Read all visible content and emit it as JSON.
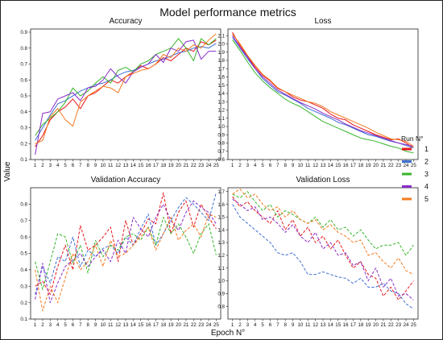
{
  "figure": {
    "title": "Model performance metrics",
    "xlabel": "Epoch N°",
    "ylabel": "Value",
    "legend_title": "Run N°"
  },
  "colors": {
    "run1": "#e8161b",
    "run2": "#3f6fd3",
    "run3": "#37b52b",
    "run4": "#8a2cc9",
    "run5": "#f47a1f"
  },
  "chart_data": [
    {
      "type": "line",
      "title": "Accuracy",
      "line_style": "solid",
      "x": [
        1,
        2,
        3,
        4,
        5,
        6,
        7,
        8,
        9,
        10,
        11,
        12,
        13,
        14,
        15,
        16,
        17,
        18,
        19,
        20,
        21,
        22,
        23,
        24,
        25
      ],
      "ylim": [
        0.1,
        0.92
      ],
      "yticks": [
        0.1,
        0.2,
        0.3,
        0.4,
        0.5,
        0.6,
        0.7,
        0.8,
        0.9
      ],
      "series": [
        {
          "name": "1",
          "values": [
            0.18,
            0.25,
            0.35,
            0.4,
            0.43,
            0.48,
            0.42,
            0.5,
            0.52,
            0.56,
            0.6,
            0.58,
            0.62,
            0.65,
            0.69,
            0.67,
            0.7,
            0.74,
            0.72,
            0.76,
            0.8,
            0.78,
            0.84,
            0.82,
            0.85
          ]
        },
        {
          "name": "2",
          "values": [
            0.22,
            0.3,
            0.38,
            0.45,
            0.47,
            0.5,
            0.53,
            0.55,
            0.57,
            0.58,
            0.6,
            0.63,
            0.65,
            0.66,
            0.68,
            0.7,
            0.72,
            0.73,
            0.75,
            0.77,
            0.78,
            0.8,
            0.81,
            0.8,
            0.83
          ]
        },
        {
          "name": "3",
          "values": [
            0.25,
            0.32,
            0.36,
            0.4,
            0.46,
            0.55,
            0.5,
            0.53,
            0.58,
            0.62,
            0.58,
            0.66,
            0.68,
            0.65,
            0.7,
            0.72,
            0.76,
            0.78,
            0.8,
            0.86,
            0.8,
            0.72,
            0.86,
            0.82,
            0.86
          ]
        },
        {
          "name": "4",
          "values": [
            0.13,
            0.39,
            0.4,
            0.48,
            0.5,
            0.52,
            0.47,
            0.55,
            0.56,
            0.6,
            0.67,
            0.62,
            0.58,
            0.65,
            0.68,
            0.7,
            0.76,
            0.71,
            0.8,
            0.78,
            0.84,
            0.85,
            0.73,
            0.78,
            0.78
          ]
        },
        {
          "name": "5",
          "values": [
            0.2,
            0.22,
            0.37,
            0.42,
            0.35,
            0.31,
            0.46,
            0.5,
            0.53,
            0.56,
            0.55,
            0.52,
            0.62,
            0.64,
            0.66,
            0.67,
            0.7,
            0.76,
            0.74,
            0.8,
            0.78,
            0.82,
            0.8,
            0.85,
            0.89
          ]
        }
      ]
    },
    {
      "type": "line",
      "title": "Loss",
      "line_style": "solid",
      "x": [
        1,
        2,
        3,
        4,
        5,
        6,
        7,
        8,
        9,
        10,
        11,
        12,
        13,
        14,
        15,
        16,
        17,
        18,
        19,
        20,
        21,
        22,
        23,
        24,
        25
      ],
      "ylim": [
        0.6,
        2.18
      ],
      "yticks": [
        0.6,
        0.7,
        0.8,
        0.9,
        1.0,
        1.1,
        1.2,
        1.3,
        1.4,
        1.5,
        1.6,
        1.7,
        1.8,
        1.9,
        2.0,
        2.1
      ],
      "series": [
        {
          "name": "1",
          "values": [
            2.14,
            1.98,
            1.85,
            1.72,
            1.62,
            1.55,
            1.46,
            1.42,
            1.36,
            1.32,
            1.3,
            1.26,
            1.22,
            1.15,
            1.1,
            1.08,
            1.02,
            0.98,
            0.94,
            0.9,
            0.87,
            0.84,
            0.85,
            0.8,
            0.74
          ]
        },
        {
          "name": "2",
          "values": [
            2.08,
            1.95,
            1.82,
            1.7,
            1.58,
            1.5,
            1.42,
            1.38,
            1.33,
            1.28,
            1.22,
            1.18,
            1.14,
            1.1,
            1.05,
            1.02,
            0.98,
            0.94,
            0.9,
            0.88,
            0.85,
            0.82,
            0.8,
            0.77,
            0.74
          ]
        },
        {
          "name": "3",
          "values": [
            2.05,
            1.92,
            1.78,
            1.65,
            1.55,
            1.47,
            1.4,
            1.33,
            1.28,
            1.24,
            1.18,
            1.12,
            1.06,
            1.02,
            0.98,
            0.94,
            0.9,
            0.86,
            0.84,
            0.82,
            0.79,
            0.76,
            0.74,
            0.7,
            0.68
          ]
        },
        {
          "name": "4",
          "values": [
            2.1,
            1.96,
            1.84,
            1.7,
            1.6,
            1.52,
            1.44,
            1.39,
            1.34,
            1.29,
            1.25,
            1.21,
            1.16,
            1.12,
            1.08,
            1.03,
            0.99,
            0.95,
            0.92,
            0.89,
            0.86,
            0.83,
            0.8,
            0.78,
            0.76
          ]
        },
        {
          "name": "5",
          "values": [
            2.12,
            2.0,
            1.86,
            1.74,
            1.63,
            1.56,
            1.47,
            1.42,
            1.38,
            1.34,
            1.3,
            1.28,
            1.24,
            1.18,
            1.14,
            1.1,
            1.06,
            1.02,
            0.98,
            0.93,
            0.89,
            0.85,
            0.84,
            0.82,
            0.76
          ]
        }
      ]
    },
    {
      "type": "line",
      "title": "Validation Accuracy",
      "line_style": "dashed",
      "x": [
        1,
        2,
        3,
        4,
        5,
        6,
        7,
        8,
        9,
        10,
        11,
        12,
        13,
        14,
        15,
        16,
        17,
        18,
        19,
        20,
        21,
        22,
        23,
        24,
        25
      ],
      "ylim": [
        0.1,
        0.9
      ],
      "yticks": [
        0.1,
        0.2,
        0.3,
        0.4,
        0.5,
        0.6,
        0.7,
        0.8
      ],
      "series": [
        {
          "name": "1",
          "values": [
            0.3,
            0.33,
            0.25,
            0.42,
            0.55,
            0.4,
            0.67,
            0.52,
            0.55,
            0.6,
            0.66,
            0.45,
            0.7,
            0.55,
            0.62,
            0.71,
            0.68,
            0.87,
            0.62,
            0.75,
            0.82,
            0.66,
            0.8,
            0.72,
            0.65
          ]
        },
        {
          "name": "2",
          "values": [
            0.25,
            0.42,
            0.32,
            0.48,
            0.45,
            0.6,
            0.42,
            0.52,
            0.48,
            0.53,
            0.55,
            0.5,
            0.6,
            0.55,
            0.65,
            0.74,
            0.55,
            0.62,
            0.7,
            0.78,
            0.84,
            0.8,
            0.75,
            0.7,
            0.87
          ]
        },
        {
          "name": "3",
          "values": [
            0.45,
            0.28,
            0.45,
            0.62,
            0.6,
            0.44,
            0.55,
            0.38,
            0.58,
            0.48,
            0.55,
            0.52,
            0.6,
            0.62,
            0.58,
            0.66,
            0.55,
            0.72,
            0.62,
            0.68,
            0.6,
            0.5,
            0.62,
            0.68,
            0.49
          ]
        },
        {
          "name": "4",
          "values": [
            0.22,
            0.44,
            0.2,
            0.32,
            0.42,
            0.46,
            0.5,
            0.42,
            0.48,
            0.52,
            0.45,
            0.58,
            0.5,
            0.72,
            0.65,
            0.6,
            0.72,
            0.8,
            0.7,
            0.64,
            0.75,
            0.82,
            0.78,
            0.75,
            0.68
          ]
        },
        {
          "name": "5",
          "values": [
            0.4,
            0.15,
            0.3,
            0.2,
            0.35,
            0.5,
            0.4,
            0.45,
            0.55,
            0.42,
            0.58,
            0.48,
            0.5,
            0.55,
            0.6,
            0.66,
            0.52,
            0.62,
            0.72,
            0.58,
            0.64,
            0.68,
            0.6,
            0.74,
            0.72
          ]
        }
      ]
    },
    {
      "type": "line",
      "title": "Validation Loss",
      "line_style": "dashed",
      "x": [
        1,
        2,
        3,
        4,
        5,
        6,
        7,
        8,
        9,
        10,
        11,
        12,
        13,
        14,
        15,
        16,
        17,
        18,
        19,
        20,
        21,
        22,
        23,
        24,
        25
      ],
      "ylim": [
        0.7,
        1.73
      ],
      "yticks": [
        0.8,
        0.9,
        1.0,
        1.1,
        1.2,
        1.3,
        1.4,
        1.5,
        1.6,
        1.7
      ],
      "series": [
        {
          "name": "1",
          "values": [
            1.66,
            1.58,
            1.62,
            1.55,
            1.5,
            1.45,
            1.55,
            1.4,
            1.48,
            1.35,
            1.42,
            1.3,
            1.35,
            1.25,
            1.32,
            1.2,
            1.1,
            1.15,
            1.05,
            1.02,
            0.88,
            0.95,
            0.85,
            0.92,
            1.0
          ]
        },
        {
          "name": "2",
          "values": [
            1.6,
            1.5,
            1.45,
            1.4,
            1.35,
            1.3,
            1.22,
            1.2,
            1.22,
            1.15,
            1.05,
            1.05,
            1.07,
            1.05,
            1.03,
            1.02,
            0.98,
            1.02,
            0.95,
            0.95,
            0.98,
            0.92,
            0.9,
            0.82,
            0.78
          ]
        },
        {
          "name": "3",
          "values": [
            1.68,
            1.65,
            1.7,
            1.62,
            1.55,
            1.6,
            1.5,
            1.55,
            1.52,
            1.48,
            1.45,
            1.5,
            1.42,
            1.48,
            1.4,
            1.42,
            1.35,
            1.4,
            1.32,
            1.25,
            1.28,
            1.28,
            1.3,
            1.2,
            1.28
          ]
        },
        {
          "name": "4",
          "values": [
            1.64,
            1.6,
            1.55,
            1.58,
            1.48,
            1.5,
            1.45,
            1.38,
            1.44,
            1.35,
            1.3,
            1.38,
            1.25,
            1.3,
            1.2,
            1.22,
            1.12,
            1.15,
            1.0,
            1.1,
            0.95,
            1.02,
            0.88,
            0.9,
            0.85
          ]
        },
        {
          "name": "5",
          "values": [
            1.68,
            1.72,
            1.65,
            1.68,
            1.6,
            1.55,
            1.58,
            1.5,
            1.55,
            1.48,
            1.45,
            1.48,
            1.4,
            1.44,
            1.38,
            1.35,
            1.3,
            1.32,
            1.2,
            1.22,
            1.15,
            1.1,
            1.18,
            1.08,
            1.05
          ]
        }
      ]
    }
  ]
}
